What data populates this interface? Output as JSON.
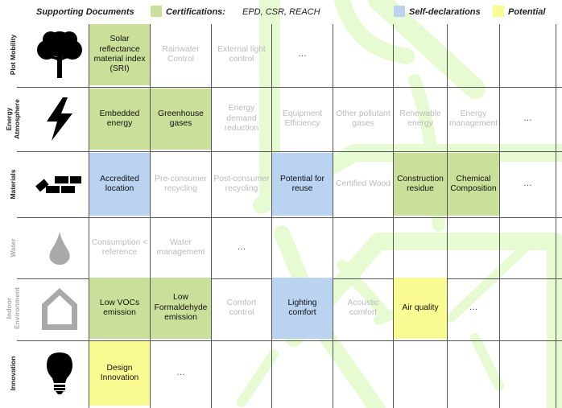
{
  "legend": {
    "supporting": "Supporting Documents",
    "certifications": "Certifications:",
    "cert_examples": "EPD, CSR, REACH",
    "self_declarations": "Self-declarations",
    "potential": "Potential"
  },
  "colors": {
    "certification": "#cadf99",
    "self_declaration": "#b9d3f0",
    "potential": "#fbfb94",
    "background_arrows": "#e6fbd2"
  },
  "rows": [
    {
      "label": "Plot Mobility",
      "icon": "tree-icon",
      "cells": [
        {
          "text": "Solar reflectance material index (SRI)",
          "type": "certification"
        },
        {
          "text": "Rainwater Control",
          "type": "none"
        },
        {
          "text": "External light control",
          "type": "none"
        },
        {
          "text": "…",
          "type": "ellipsis"
        }
      ]
    },
    {
      "label": "Energy Atmosphere",
      "icon": "lightning-icon",
      "cells": [
        {
          "text": "Embedded energy",
          "type": "certification"
        },
        {
          "text": "Greenhouse gases",
          "type": "certification"
        },
        {
          "text": "Energy demand reduction",
          "type": "none"
        },
        {
          "text": "Equipment Efficiency",
          "type": "none"
        },
        {
          "text": "Other pollutant gases",
          "type": "none"
        },
        {
          "text": "Renewable energy",
          "type": "none"
        },
        {
          "text": "Energy management",
          "type": "none"
        },
        {
          "text": "…",
          "type": "ellipsis"
        }
      ]
    },
    {
      "label": "Materials",
      "icon": "bricks-icon",
      "cells": [
        {
          "text": "Accredited location",
          "type": "self_declaration"
        },
        {
          "text": "Pre-consumer recycling",
          "type": "none"
        },
        {
          "text": "Post-consumer recycling",
          "type": "none"
        },
        {
          "text": "Potential for reuse",
          "type": "self_declaration"
        },
        {
          "text": "Certified Wood",
          "type": "none"
        },
        {
          "text": "Construction residue",
          "type": "certification"
        },
        {
          "text": "Chemical Composition",
          "type": "certification"
        },
        {
          "text": "…",
          "type": "ellipsis"
        }
      ]
    },
    {
      "label": "Water",
      "icon": "water-drop-icon",
      "cells": [
        {
          "text": "Consumption < reference",
          "type": "none"
        },
        {
          "text": "Water management",
          "type": "none"
        },
        {
          "text": "…",
          "type": "ellipsis"
        }
      ]
    },
    {
      "label": "Indoor Environment",
      "icon": "house-icon",
      "cells": [
        {
          "text": "Low VOCs emission",
          "type": "certification"
        },
        {
          "text": "Low Formaldehyde emission",
          "type": "certification"
        },
        {
          "text": "Comfort control",
          "type": "none"
        },
        {
          "text": "Lighting comfort",
          "type": "self_declaration"
        },
        {
          "text": "Acoustic comfort",
          "type": "none"
        },
        {
          "text": "Air quality",
          "type": "potential"
        },
        {
          "text": "…",
          "type": "ellipsis"
        }
      ]
    },
    {
      "label": "Innovation",
      "icon": "light-bulb-icon",
      "cells": [
        {
          "text": "Design Innovation",
          "type": "potential"
        },
        {
          "text": "…",
          "type": "ellipsis"
        }
      ]
    }
  ]
}
